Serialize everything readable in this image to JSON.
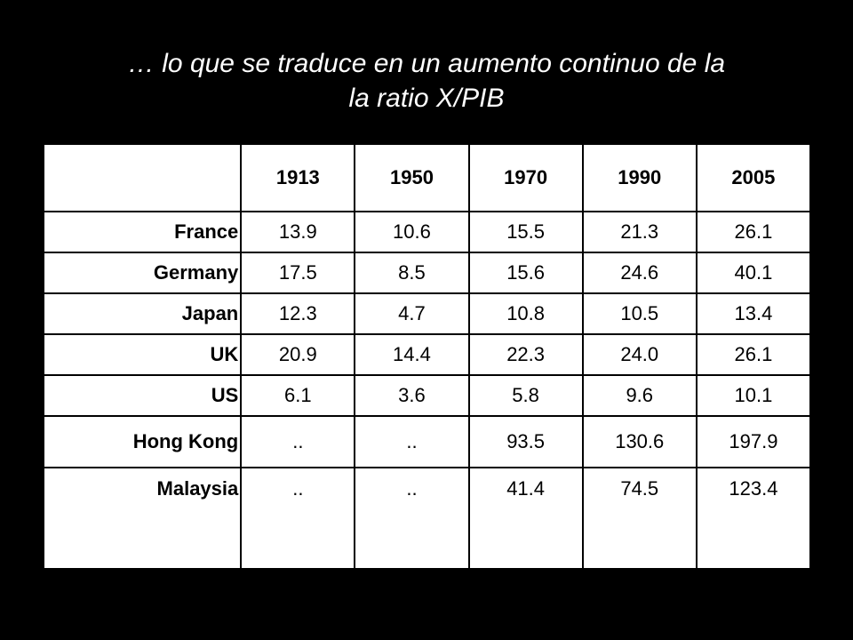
{
  "title": {
    "line1": "… lo que se traduce en un aumento continuo de la",
    "line2": "la ratio X/PIB"
  },
  "table": {
    "corner": "",
    "headers": [
      "1913",
      "1950",
      "1970",
      "1990",
      "2005"
    ],
    "rows": [
      {
        "country": "France",
        "values": [
          "13.9",
          "10.6",
          "15.5",
          "21.3",
          "26.1"
        ]
      },
      {
        "country": "Germany",
        "values": [
          "17.5",
          "8.5",
          "15.6",
          "24.6",
          "40.1"
        ]
      },
      {
        "country": "Japan",
        "values": [
          "12.3",
          "4.7",
          "10.8",
          "10.5",
          "13.4"
        ]
      },
      {
        "country": "UK",
        "values": [
          "20.9",
          "14.4",
          "22.3",
          "24.0",
          "26.1"
        ]
      },
      {
        "country": "US",
        "values": [
          "6.1",
          "3.6",
          "5.8",
          "9.6",
          "10.1"
        ]
      },
      {
        "country": "Hong Kong",
        "values": [
          "..",
          "..",
          "93.5",
          "130.6",
          "197.9"
        ]
      },
      {
        "country": "Malaysia",
        "values": [
          "..",
          "..",
          "41.4",
          "74.5",
          "123.4"
        ]
      }
    ]
  }
}
